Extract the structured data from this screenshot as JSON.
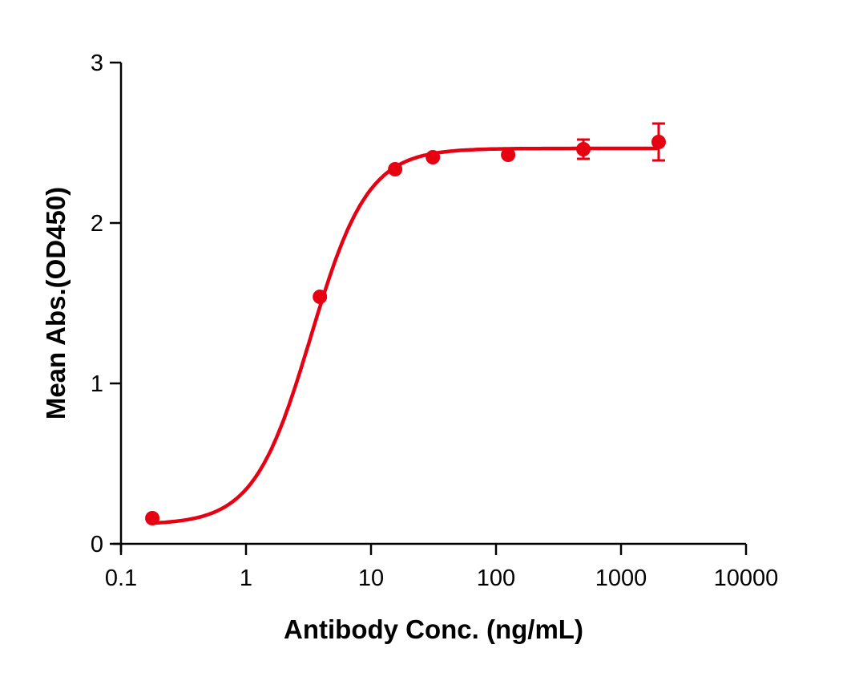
{
  "chart_data": {
    "type": "scatter",
    "title": "",
    "xlabel": "Antibody Conc. (ng/mL)",
    "ylabel": "Mean Abs.(OD450)",
    "xscale": "log",
    "xlim": [
      0.1,
      10000
    ],
    "ylim": [
      0,
      3
    ],
    "x_ticks": [
      0.1,
      1,
      10,
      100,
      1000,
      10000
    ],
    "x_tick_labels": [
      "0.1",
      "1",
      "10",
      "100",
      "1000",
      "10000"
    ],
    "y_ticks": [
      0,
      1,
      2,
      3
    ],
    "y_tick_labels": [
      "0",
      "1",
      "2",
      "3"
    ],
    "grid": false,
    "legend": null,
    "color": "#e60012",
    "series": [
      {
        "name": "Mean Abs.",
        "x": [
          0.178,
          3.9,
          15.6,
          31.25,
          125,
          500,
          2000
        ],
        "y": [
          0.16,
          1.54,
          2.335,
          2.41,
          2.425,
          2.46,
          2.505
        ],
        "error": [
          0.0,
          0.0,
          0.0,
          0.0,
          0.0,
          0.06,
          0.115
        ]
      }
    ],
    "fit": {
      "model": "4-parameter logistic",
      "bottom": 0.12,
      "top": 2.465,
      "ec50": 3.3,
      "hill": 1.9
    }
  }
}
